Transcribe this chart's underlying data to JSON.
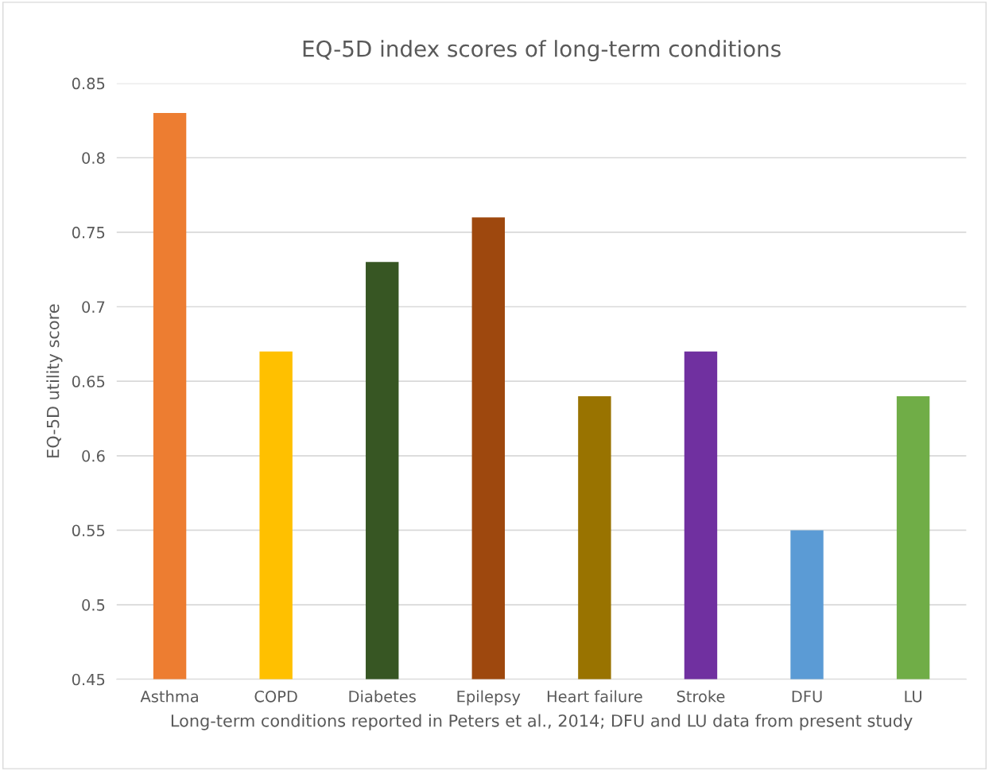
{
  "chart_data": {
    "type": "bar",
    "title": "EQ-5D index scores of long-term conditions",
    "xlabel": "Long-term conditions reported in Peters et al., 2014; DFU and LU data from present study",
    "ylabel": "EQ-5D utility score",
    "categories": [
      "Asthma",
      "COPD",
      "Diabetes",
      "Epilepsy",
      "Heart failure",
      "Stroke",
      "DFU",
      "LU"
    ],
    "values": [
      0.83,
      0.67,
      0.73,
      0.76,
      0.64,
      0.67,
      0.55,
      0.64
    ],
    "colors": [
      "#ed7d31",
      "#ffc000",
      "#375623",
      "#9e480e",
      "#997300",
      "#7030a0",
      "#5b9bd5",
      "#70ad47"
    ],
    "ylim": [
      0.45,
      0.85
    ],
    "yticks": [
      {
        "value": 0.45,
        "label": "0.45"
      },
      {
        "value": 0.5,
        "label": "0.5"
      },
      {
        "value": 0.55,
        "label": "0.55"
      },
      {
        "value": 0.6,
        "label": "0.6"
      },
      {
        "value": 0.65,
        "label": "0.65"
      },
      {
        "value": 0.7,
        "label": "0.7"
      },
      {
        "value": 0.75,
        "label": "0.75"
      },
      {
        "value": 0.8,
        "label": "0.8"
      },
      {
        "value": 0.85,
        "label": "0.85"
      }
    ],
    "grid": "y",
    "legend": false
  }
}
